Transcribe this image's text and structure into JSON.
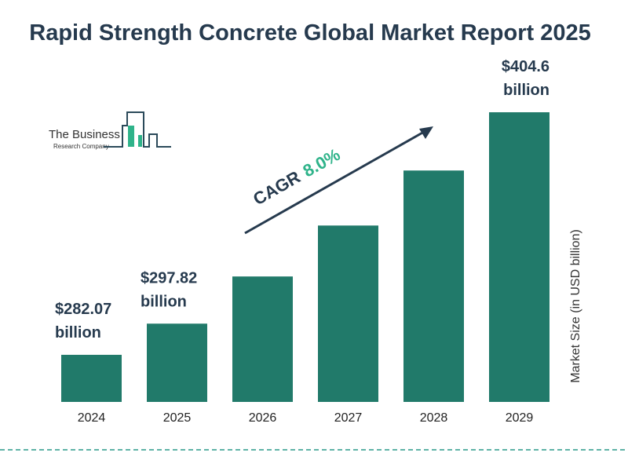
{
  "chart_data": {
    "type": "bar",
    "title": "Rapid Strength Concrete Global Market Report 2025",
    "ylabel": "Market Size (in USD billion)",
    "xlabel": "",
    "categories": [
      "2024",
      "2025",
      "2026",
      "2027",
      "2028",
      "2029"
    ],
    "values": [
      282.07,
      297.82,
      321.65,
      347.38,
      375.17,
      404.6
    ],
    "data_labels": [
      "$282.07",
      "$297.82",
      "",
      "",
      "",
      "$404.6"
    ],
    "data_label_unit": "billion",
    "annotation": {
      "text": "CAGR",
      "value": "8.0%"
    },
    "colors": {
      "bar": "#217a6a",
      "title": "#263a4e",
      "cagr": "#2fb38a",
      "divider": "#2a9a8a"
    },
    "grid": false,
    "legend": "none"
  },
  "logo": {
    "line1": "The Business",
    "line2": "Research Company"
  }
}
